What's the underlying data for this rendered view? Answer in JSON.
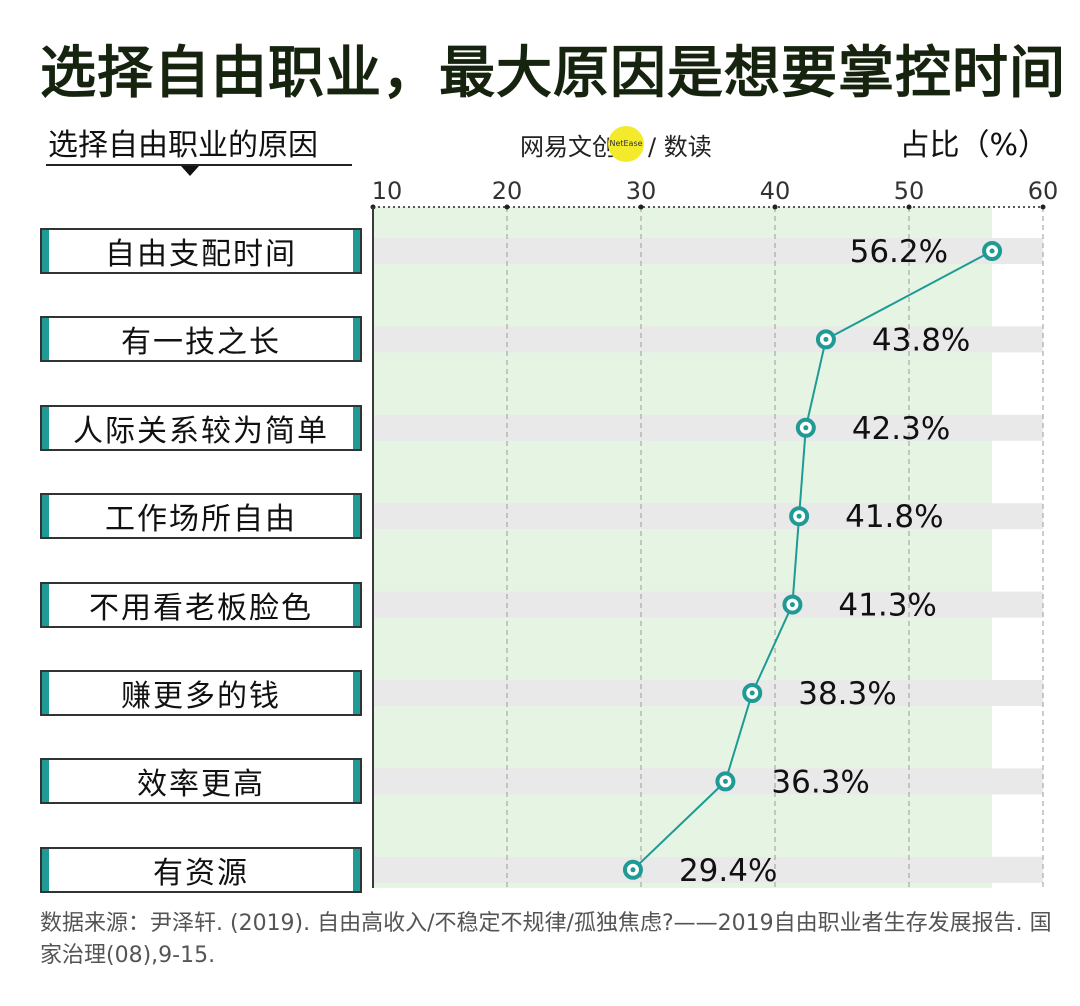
{
  "header": {
    "title": "选择自由职业，最大原因是想要掌控时间",
    "subtitle": "选择自由职业的原因",
    "unit": "占比（%）"
  },
  "brand": {
    "part1": "网易文创",
    "badge": "NetEase",
    "part2": "/ 数读"
  },
  "chart_data": {
    "type": "line",
    "orientation": "horizontal",
    "categories": [
      "自由支配时间",
      "有一技之长",
      "人际关系较为简单",
      "工作场所自由",
      "不用看老板脸色",
      "赚更多的钱",
      "效率更高",
      "有资源"
    ],
    "values": [
      56.2,
      43.8,
      42.3,
      41.8,
      41.3,
      38.3,
      36.3,
      29.4
    ],
    "value_labels": [
      "56.2%",
      "43.8%",
      "42.3%",
      "41.8%",
      "41.3%",
      "38.3%",
      "36.3%",
      "29.4%"
    ],
    "x_ticks": [
      10,
      20,
      30,
      40,
      50,
      60
    ],
    "xlim": [
      10,
      60
    ],
    "colors": {
      "line": "#1f9a95",
      "marker": "#1f9a95",
      "area": "#e6f5e3",
      "band": "#e9e9e9",
      "grid": "#9a9a9a",
      "accent": "#1f9a95"
    },
    "grid": true
  },
  "source": "数据来源：尹泽轩. (2019). 自由高收入/不稳定不规律/孤独焦虑?——2019自由职业者生存发展报告. 国家治理(08),9-15."
}
